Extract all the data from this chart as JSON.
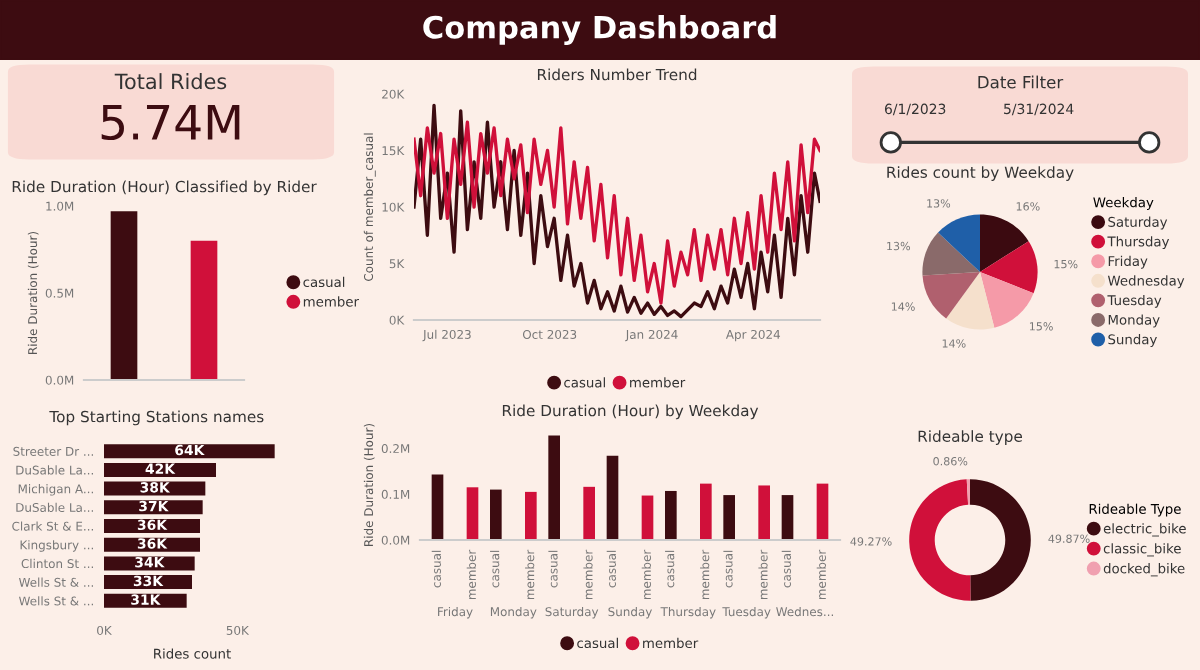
{
  "chart_data": [
    {
      "type": "other",
      "title": "Company Dashboard"
    },
    {
      "type": "other",
      "title": "Total Rides",
      "annotations": [
        "5.74M"
      ]
    },
    {
      "type": "line",
      "title": "Riders Number Trend",
      "ylabel": "Count of member_casual",
      "legend": "bottom",
      "x": [
        "2023-06-01",
        "2023-06-07",
        "2023-06-13",
        "2023-06-19",
        "2023-06-25",
        "2023-07-01",
        "2023-07-07",
        "2023-07-13",
        "2023-07-19",
        "2023-07-25",
        "2023-07-31",
        "2023-08-06",
        "2023-08-12",
        "2023-08-18",
        "2023-08-24",
        "2023-08-30",
        "2023-09-05",
        "2023-09-11",
        "2023-09-17",
        "2023-09-23",
        "2023-09-29",
        "2023-10-05",
        "2023-10-11",
        "2023-10-17",
        "2023-10-23",
        "2023-10-29",
        "2023-11-04",
        "2023-11-10",
        "2023-11-16",
        "2023-11-22",
        "2023-11-28",
        "2023-12-04",
        "2023-12-10",
        "2023-12-16",
        "2023-12-22",
        "2023-12-28",
        "2024-01-03",
        "2024-01-09",
        "2024-01-15",
        "2024-01-21",
        "2024-01-27",
        "2024-02-02",
        "2024-02-08",
        "2024-02-14",
        "2024-02-20",
        "2024-02-26",
        "2024-03-03",
        "2024-03-09",
        "2024-03-15",
        "2024-03-21",
        "2024-03-27",
        "2024-04-02",
        "2024-04-08",
        "2024-04-14",
        "2024-04-20",
        "2024-04-26",
        "2024-05-02",
        "2024-05-08",
        "2024-05-14",
        "2024-05-20",
        "2024-05-26",
        "2024-05-31"
      ],
      "series": [
        {
          "name": "casual",
          "color": "#3d0c11",
          "values": [
            10000,
            16000,
            7500,
            19000,
            9000,
            13000,
            6000,
            18500,
            8000,
            14000,
            9000,
            17500,
            10000,
            14000,
            8000,
            15000,
            7500,
            13000,
            5000,
            11000,
            6500,
            9000,
            3500,
            7500,
            3000,
            5000,
            1500,
            3500,
            1000,
            2500,
            800,
            3000,
            700,
            2000,
            600,
            1500,
            500,
            1200,
            400,
            800,
            300,
            900,
            1500,
            1200,
            2500,
            1000,
            3000,
            1500,
            4500,
            2000,
            5000,
            1000,
            6000,
            2500,
            7500,
            2000,
            9000,
            4000,
            11000,
            6000,
            13000,
            10500
          ]
        },
        {
          "name": "member",
          "color": "#d0103a",
          "values": [
            16000,
            11000,
            17000,
            13000,
            16500,
            9000,
            16000,
            12000,
            17500,
            10000,
            16500,
            13000,
            17000,
            11000,
            16000,
            12500,
            15500,
            9500,
            16000,
            12000,
            15000,
            10000,
            17000,
            8500,
            14000,
            9000,
            13500,
            7000,
            12000,
            5500,
            11000,
            4000,
            9000,
            3500,
            7500,
            2500,
            5000,
            1500,
            7000,
            3000,
            6000,
            4000,
            8000,
            3500,
            7500,
            4500,
            8000,
            4000,
            9000,
            5000,
            9500,
            4500,
            11000,
            6000,
            13000,
            8000,
            14000,
            7000,
            15500,
            9500,
            16000,
            15000
          ]
        }
      ],
      "xlim": [
        "2023-06-01",
        "2024-05-31"
      ],
      "xticks": [
        {
          "value": "2023-07-01",
          "label": "Jul 2023"
        },
        {
          "value": "2023-10-01",
          "label": "Oct 2023"
        },
        {
          "value": "2024-01-01",
          "label": "Jan 2024"
        },
        {
          "value": "2024-04-01",
          "label": "Apr 2024"
        }
      ],
      "ylim": [
        0,
        20000
      ],
      "yticks": [
        {
          "value": 0,
          "label": "0K"
        },
        {
          "value": 5000,
          "label": "5K"
        },
        {
          "value": 10000,
          "label": "10K"
        },
        {
          "value": 15000,
          "label": "15K"
        },
        {
          "value": 20000,
          "label": "20K"
        }
      ]
    },
    {
      "type": "other",
      "title": "Date Filter",
      "annotations": [
        "6/1/2023",
        "5/31/2024"
      ]
    },
    {
      "type": "bar",
      "title": "Ride Duration (Hour) Classified by Rider",
      "ylabel": "Ride Duration (Hour)",
      "categories": [
        null
      ],
      "legend": "right",
      "tick_labels": "y",
      "series": [
        {
          "name": "casual",
          "color": "#3d0c11",
          "values": [
            970000
          ]
        },
        {
          "name": "member",
          "color": "#d0103a",
          "values": [
            800000
          ]
        }
      ],
      "ylim": [
        0,
        1000000
      ],
      "yticks": [
        {
          "value": 0,
          "label": "0.0M"
        },
        {
          "value": 500000,
          "label": "0.5M"
        },
        {
          "value": 1000000,
          "label": "1.0M"
        }
      ]
    },
    {
      "type": "pie",
      "title": "Rides count by Weekday",
      "legend_title": "Weekday",
      "legend": "right",
      "categories": [
        "Saturday",
        "Thursday",
        "Friday",
        "Wednesday",
        "Tuesday",
        "Monday",
        "Sunday"
      ],
      "values": [
        16,
        15,
        15,
        14,
        14,
        13,
        13
      ],
      "value_labels": [
        "16%",
        "15%",
        "15%",
        "14%",
        "14%",
        "13%",
        "13%"
      ],
      "colors": [
        "#3b0a10",
        "#d0103a",
        "#f59aa8",
        "#f5e0cc",
        "#b0606e",
        "#8a6a6a",
        "#1f5fa8"
      ]
    },
    {
      "type": "bar",
      "orientation": "horizontal",
      "title": "Top Starting Stations names",
      "xlabel": "Rides count",
      "categories": [
        "Streeter Dr ...",
        "DuSable La...",
        "Michigan A...",
        "DuSable La...",
        "Clark St & E...",
        "Kingsbury ...",
        "Clinton St ...",
        "Wells St & ...",
        "Wells St & ..."
      ],
      "values": [
        64000,
        42000,
        38000,
        37000,
        36000,
        36000,
        34000,
        33000,
        31000
      ],
      "value_labels": [
        "64K",
        "42K",
        "38K",
        "37K",
        "36K",
        "36K",
        "34K",
        "33K",
        "31K"
      ],
      "color": "#3d0c11",
      "xlim": [
        0,
        66000
      ],
      "xticks": [
        {
          "value": 0,
          "label": "0K"
        },
        {
          "value": 50000,
          "label": "50K"
        }
      ]
    },
    {
      "type": "bar",
      "title": "Ride Duration (Hour) by Weekday",
      "ylabel": "Ride Duration (Hour)",
      "legend": "bottom",
      "categories": [
        "Friday",
        "Monday",
        "Saturday",
        "Sunday",
        "Thursday",
        "Tuesday",
        "Wednes..."
      ],
      "series": [
        {
          "name": "casual",
          "color": "#3d0c11",
          "values": [
            143000,
            110000,
            228000,
            184000,
            107000,
            98000,
            98000
          ]
        },
        {
          "name": "member",
          "color": "#d0103a",
          "values": [
            115000,
            105000,
            116000,
            97000,
            123000,
            119000,
            123000
          ]
        }
      ],
      "ylim": [
        0,
        240000
      ],
      "yticks": [
        {
          "value": 0,
          "label": "0.0M"
        },
        {
          "value": 100000,
          "label": "0.1M"
        },
        {
          "value": 200000,
          "label": "0.2M"
        }
      ]
    },
    {
      "type": "donut",
      "title": "Rideable type",
      "legend_title": "Rideable Type",
      "legend": "right",
      "categories": [
        "electric_bike",
        "classic_bike",
        "docked_bike"
      ],
      "values": [
        49.87,
        49.27,
        0.86
      ],
      "value_labels": [
        "49.87%",
        "49.27%",
        "0.86%"
      ],
      "colors": [
        "#3d0c11",
        "#d0103a",
        "#f0a0b0"
      ]
    }
  ]
}
